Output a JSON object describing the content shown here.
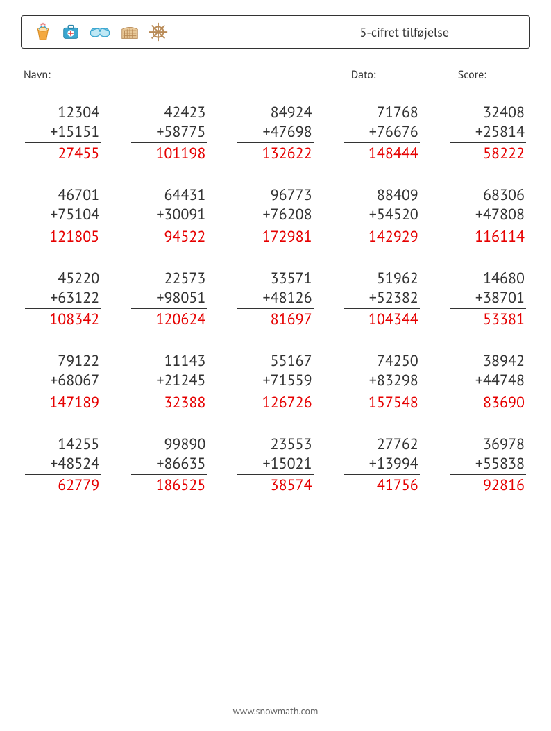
{
  "header": {
    "title": "5-cifret tilføjelse",
    "icons": [
      "bucket-icon",
      "firstaid-icon",
      "goggles-icon",
      "colosseum-icon",
      "shipwheel-icon"
    ]
  },
  "info": {
    "name_label": "Navn:",
    "date_label": "Dato:",
    "score_label": "Score:"
  },
  "style": {
    "text_color": "#333333",
    "answer_color": "#e60000",
    "border_color": "#333333",
    "background_color": "#ffffff",
    "font_size_problem": 22,
    "font_size_title": 18,
    "font_size_info": 16,
    "columns": 5,
    "rows": 5,
    "icon_colors": {
      "orange": "#f4a940",
      "blue": "#3aa6d0",
      "brown": "#b88a56",
      "wheel": "#b88a56"
    }
  },
  "problems": [
    {
      "a": "12304",
      "b": "15151",
      "ans": "27455"
    },
    {
      "a": "42423",
      "b": "58775",
      "ans": "101198"
    },
    {
      "a": "84924",
      "b": "47698",
      "ans": "132622"
    },
    {
      "a": "71768",
      "b": "76676",
      "ans": "148444"
    },
    {
      "a": "32408",
      "b": "25814",
      "ans": "58222"
    },
    {
      "a": "46701",
      "b": "75104",
      "ans": "121805"
    },
    {
      "a": "64431",
      "b": "30091",
      "ans": "94522"
    },
    {
      "a": "96773",
      "b": "76208",
      "ans": "172981"
    },
    {
      "a": "88409",
      "b": "54520",
      "ans": "142929"
    },
    {
      "a": "68306",
      "b": "47808",
      "ans": "116114"
    },
    {
      "a": "45220",
      "b": "63122",
      "ans": "108342"
    },
    {
      "a": "22573",
      "b": "98051",
      "ans": "120624"
    },
    {
      "a": "33571",
      "b": "48126",
      "ans": "81697"
    },
    {
      "a": "51962",
      "b": "52382",
      "ans": "104344"
    },
    {
      "a": "14680",
      "b": "38701",
      "ans": "53381"
    },
    {
      "a": "79122",
      "b": "68067",
      "ans": "147189"
    },
    {
      "a": "11143",
      "b": "21245",
      "ans": "32388"
    },
    {
      "a": "55167",
      "b": "71559",
      "ans": "126726"
    },
    {
      "a": "74250",
      "b": "83298",
      "ans": "157548"
    },
    {
      "a": "38942",
      "b": "44748",
      "ans": "83690"
    },
    {
      "a": "14255",
      "b": "48524",
      "ans": "62779"
    },
    {
      "a": "99890",
      "b": "86635",
      "ans": "186525"
    },
    {
      "a": "23553",
      "b": "15021",
      "ans": "38574"
    },
    {
      "a": "27762",
      "b": "13994",
      "ans": "41756"
    },
    {
      "a": "36978",
      "b": "55838",
      "ans": "92816"
    }
  ],
  "footer": {
    "text": "www.snowmath.com"
  }
}
